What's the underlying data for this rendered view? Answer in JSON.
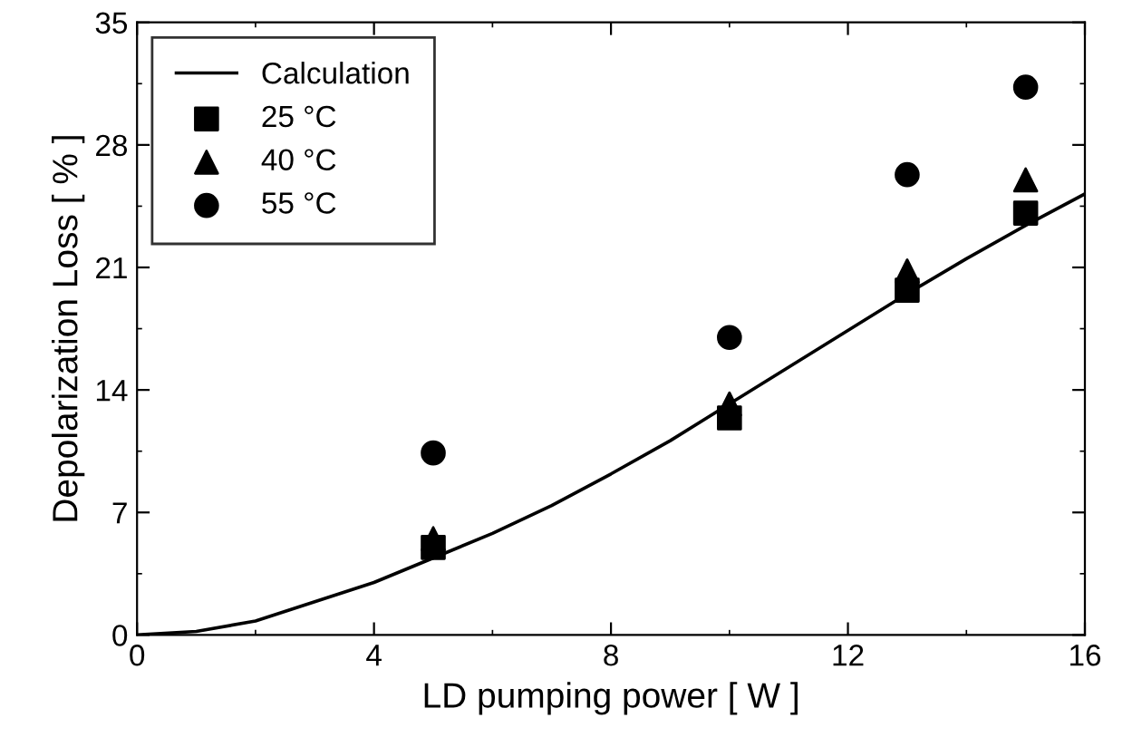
{
  "chart_data": {
    "type": "scatter",
    "xlabel": "LD pumping power [ W ]",
    "ylabel": "Depolarization Loss [ % ]",
    "xlim": [
      0,
      16
    ],
    "xticks": [
      0,
      4,
      8,
      12,
      16
    ],
    "ylim": [
      0,
      35
    ],
    "yticks": [
      0,
      7,
      14,
      21,
      28,
      35
    ],
    "grid": false,
    "legend": "top left",
    "series": [
      {
        "name": "Calculation",
        "type": "line",
        "color": "#000000",
        "marker": "none",
        "line_style": "solid",
        "x": [
          0,
          1,
          2,
          3,
          4,
          5,
          6,
          7,
          8,
          9,
          10,
          11,
          12,
          13,
          14,
          15,
          16
        ],
        "values": [
          0,
          0.2,
          0.8,
          1.9,
          3.0,
          4.4,
          5.8,
          7.4,
          9.2,
          11.1,
          13.2,
          15.3,
          17.4,
          19.5,
          21.5,
          23.4,
          25.2
        ]
      },
      {
        "name": "25 °C",
        "color": "#000000",
        "marker": "square",
        "x": [
          5,
          10,
          13,
          15
        ],
        "values": [
          5.0,
          12.4,
          19.7,
          24.1
        ]
      },
      {
        "name": "40 °C",
        "color": "#000000",
        "marker": "triangle",
        "x": [
          5,
          10,
          13,
          15
        ],
        "values": [
          5.5,
          13.2,
          20.8,
          26.0
        ]
      },
      {
        "name": "55 °C",
        "color": "#000000",
        "marker": "circle",
        "x": [
          5,
          10,
          13,
          15
        ],
        "values": [
          10.4,
          17.0,
          26.3,
          31.3
        ]
      }
    ]
  }
}
